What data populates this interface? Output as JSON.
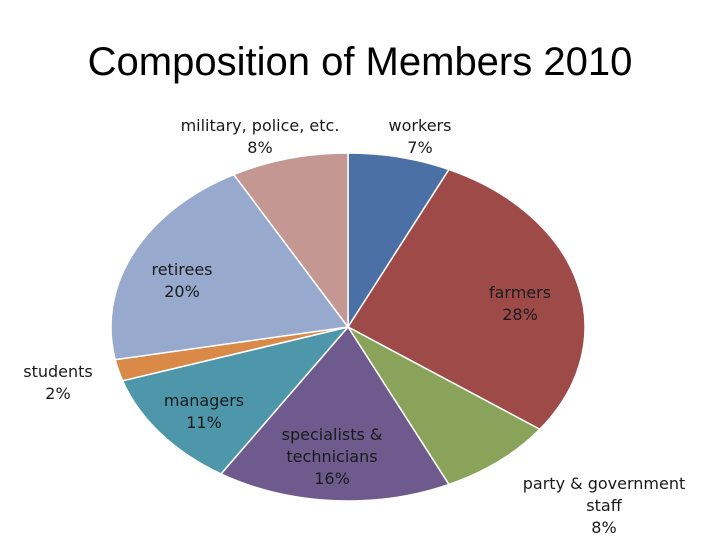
{
  "chart_data": {
    "type": "pie",
    "title": "Composition of Members 2010",
    "slices": [
      {
        "label_lines": [
          "workers"
        ],
        "pct_label": "7%",
        "value": 7,
        "color": "#4a70a5"
      },
      {
        "label_lines": [
          "farmers"
        ],
        "pct_label": "28%",
        "value": 28,
        "color": "#9e4a48"
      },
      {
        "label_lines": [
          "party & government",
          "staff"
        ],
        "pct_label": "8%",
        "value": 8,
        "color": "#8aa35a"
      },
      {
        "label_lines": [
          "specialists &",
          "technicians"
        ],
        "pct_label": "16%",
        "value": 16,
        "color": "#6e5a8c"
      },
      {
        "label_lines": [
          "managers"
        ],
        "pct_label": "11%",
        "value": 11,
        "color": "#4e97ab"
      },
      {
        "label_lines": [
          "students"
        ],
        "pct_label": "2%",
        "value": 2,
        "color": "#d98a48"
      },
      {
        "label_lines": [
          "retirees"
        ],
        "pct_label": "20%",
        "value": 20,
        "color": "#97a9cd"
      },
      {
        "label_lines": [
          "military, police, etc."
        ],
        "pct_label": "8%",
        "value": 8,
        "color": "#c49793"
      }
    ],
    "start_angle": "12 o'clock",
    "direction": "clockwise",
    "legend": "none"
  }
}
